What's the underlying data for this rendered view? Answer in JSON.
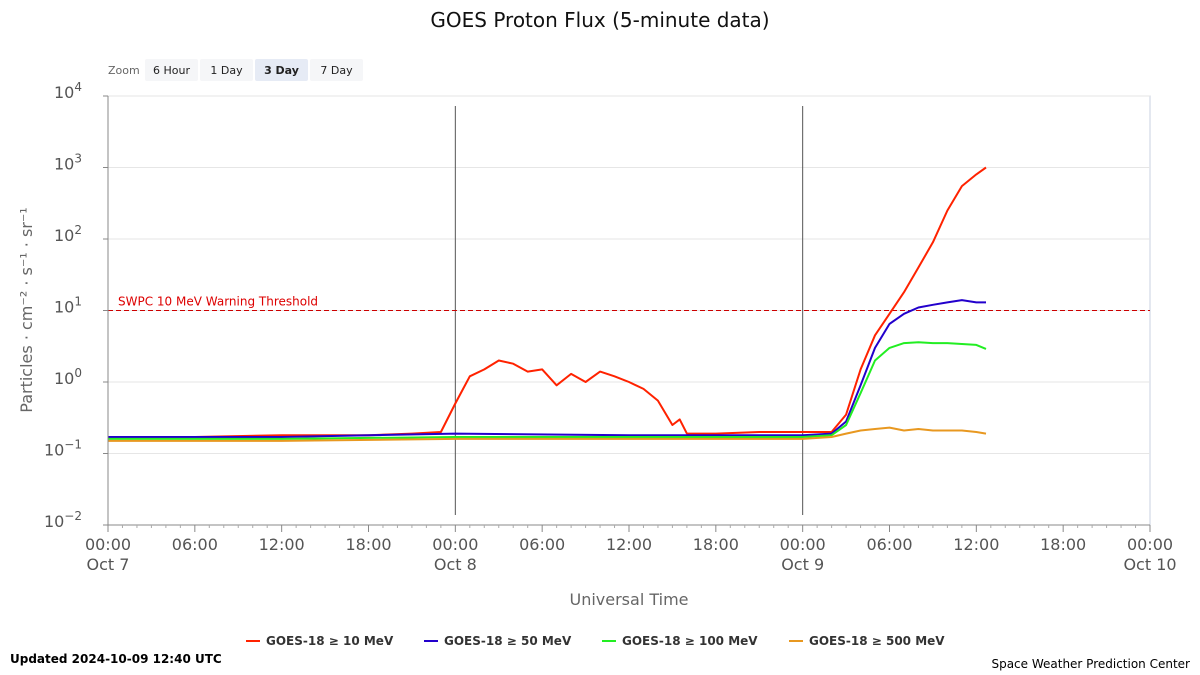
{
  "chart_data": {
    "type": "line",
    "title": "GOES Proton Flux (5-minute data)",
    "xlabel": "Universal Time",
    "ylabel": "Particles · cm⁻² · s⁻¹ · sr⁻¹",
    "yscale": "log",
    "ylim": [
      0.01,
      10000
    ],
    "y_ticks": [
      {
        "value": 10000,
        "base": "10",
        "exp": "4"
      },
      {
        "value": 1000,
        "base": "10",
        "exp": "3"
      },
      {
        "value": 100,
        "base": "10",
        "exp": "2"
      },
      {
        "value": 10,
        "base": "10",
        "exp": "1"
      },
      {
        "value": 1,
        "base": "10",
        "exp": "0"
      },
      {
        "value": 0.1,
        "base": "10",
        "exp": "−1"
      },
      {
        "value": 0.01,
        "base": "10",
        "exp": "−2"
      }
    ],
    "xlim": [
      "2024-10-07 00:00",
      "2024-10-10 00:00"
    ],
    "x_ticks": [
      {
        "time": "2024-10-07 00:00",
        "line1": "00:00",
        "line2": "Oct 7"
      },
      {
        "time": "2024-10-07 06:00",
        "line1": "06:00",
        "line2": ""
      },
      {
        "time": "2024-10-07 12:00",
        "line1": "12:00",
        "line2": ""
      },
      {
        "time": "2024-10-07 18:00",
        "line1": "18:00",
        "line2": ""
      },
      {
        "time": "2024-10-08 00:00",
        "line1": "00:00",
        "line2": "Oct 8"
      },
      {
        "time": "2024-10-08 06:00",
        "line1": "06:00",
        "line2": ""
      },
      {
        "time": "2024-10-08 12:00",
        "line1": "12:00",
        "line2": ""
      },
      {
        "time": "2024-10-08 18:00",
        "line1": "18:00",
        "line2": ""
      },
      {
        "time": "2024-10-09 00:00",
        "line1": "00:00",
        "line2": "Oct 9"
      },
      {
        "time": "2024-10-09 06:00",
        "line1": "06:00",
        "line2": ""
      },
      {
        "time": "2024-10-09 12:00",
        "line1": "12:00",
        "line2": ""
      },
      {
        "time": "2024-10-09 18:00",
        "line1": "18:00",
        "line2": ""
      },
      {
        "time": "2024-10-10 00:00",
        "line1": "00:00",
        "line2": "Oct 10"
      }
    ],
    "day_boundaries": [
      "2024-10-08 00:00",
      "2024-10-09 00:00"
    ],
    "threshold": {
      "value": 10,
      "label": "SWPC 10 MeV Warning Threshold",
      "color": "#cc0000"
    },
    "grid": true,
    "legend_position": "bottom",
    "series": [
      {
        "name": "GOES-18 ≥ 10 MeV",
        "color": "#ff2200",
        "x": [
          "2024-10-07 00:00",
          "2024-10-07 06:00",
          "2024-10-07 12:00",
          "2024-10-07 18:00",
          "2024-10-07 21:00",
          "2024-10-07 23:00",
          "2024-10-08 00:00",
          "2024-10-08 01:00",
          "2024-10-08 02:00",
          "2024-10-08 03:00",
          "2024-10-08 04:00",
          "2024-10-08 05:00",
          "2024-10-08 06:00",
          "2024-10-08 07:00",
          "2024-10-08 08:00",
          "2024-10-08 09:00",
          "2024-10-08 10:00",
          "2024-10-08 11:00",
          "2024-10-08 12:00",
          "2024-10-08 13:00",
          "2024-10-08 14:00",
          "2024-10-08 15:00",
          "2024-10-08 15:30",
          "2024-10-08 16:00",
          "2024-10-08 18:00",
          "2024-10-08 21:00",
          "2024-10-09 00:00",
          "2024-10-09 02:00",
          "2024-10-09 03:00",
          "2024-10-09 04:00",
          "2024-10-09 05:00",
          "2024-10-09 06:00",
          "2024-10-09 07:00",
          "2024-10-09 08:00",
          "2024-10-09 09:00",
          "2024-10-09 10:00",
          "2024-10-09 11:00",
          "2024-10-09 12:00",
          "2024-10-09 12:40"
        ],
        "y": [
          0.17,
          0.17,
          0.18,
          0.18,
          0.19,
          0.2,
          0.5,
          1.2,
          1.5,
          2.0,
          1.8,
          1.4,
          1.5,
          0.9,
          1.3,
          1.0,
          1.4,
          1.2,
          1.0,
          0.8,
          0.55,
          0.25,
          0.3,
          0.19,
          0.19,
          0.2,
          0.2,
          0.2,
          0.35,
          1.5,
          4.5,
          9.0,
          18,
          40,
          90,
          250,
          550,
          800,
          1000
        ]
      },
      {
        "name": "GOES-18 ≥ 50 MeV",
        "color": "#2200cc",
        "x": [
          "2024-10-07 00:00",
          "2024-10-07 12:00",
          "2024-10-08 00:00",
          "2024-10-08 12:00",
          "2024-10-09 00:00",
          "2024-10-09 02:00",
          "2024-10-09 03:00",
          "2024-10-09 04:00",
          "2024-10-09 05:00",
          "2024-10-09 06:00",
          "2024-10-09 07:00",
          "2024-10-09 08:00",
          "2024-10-09 09:00",
          "2024-10-09 10:00",
          "2024-10-09 11:00",
          "2024-10-09 12:00",
          "2024-10-09 12:40"
        ],
        "y": [
          0.17,
          0.17,
          0.19,
          0.18,
          0.18,
          0.19,
          0.28,
          0.9,
          3.0,
          6.5,
          9.0,
          11,
          12,
          13,
          14,
          13,
          13
        ]
      },
      {
        "name": "GOES-18 ≥ 100 MeV",
        "color": "#22ee22",
        "x": [
          "2024-10-07 00:00",
          "2024-10-07 12:00",
          "2024-10-08 00:00",
          "2024-10-08 12:00",
          "2024-10-09 00:00",
          "2024-10-09 02:00",
          "2024-10-09 03:00",
          "2024-10-09 04:00",
          "2024-10-09 05:00",
          "2024-10-09 06:00",
          "2024-10-09 07:00",
          "2024-10-09 08:00",
          "2024-10-09 09:00",
          "2024-10-09 10:00",
          "2024-10-09 11:00",
          "2024-10-09 12:00",
          "2024-10-09 12:40"
        ],
        "y": [
          0.16,
          0.16,
          0.17,
          0.17,
          0.17,
          0.18,
          0.25,
          0.7,
          2.0,
          3.0,
          3.5,
          3.6,
          3.5,
          3.5,
          3.4,
          3.3,
          2.9
        ]
      },
      {
        "name": "GOES-18 ≥ 500 MeV",
        "color": "#e89820",
        "x": [
          "2024-10-07 00:00",
          "2024-10-07 12:00",
          "2024-10-08 00:00",
          "2024-10-08 12:00",
          "2024-10-09 00:00",
          "2024-10-09 02:00",
          "2024-10-09 03:00",
          "2024-10-09 04:00",
          "2024-10-09 05:00",
          "2024-10-09 06:00",
          "2024-10-09 07:00",
          "2024-10-09 08:00",
          "2024-10-09 09:00",
          "2024-10-09 10:00",
          "2024-10-09 11:00",
          "2024-10-09 12:00",
          "2024-10-09 12:40"
        ],
        "y": [
          0.15,
          0.15,
          0.16,
          0.16,
          0.16,
          0.17,
          0.19,
          0.21,
          0.22,
          0.23,
          0.21,
          0.22,
          0.21,
          0.21,
          0.21,
          0.2,
          0.19
        ]
      }
    ]
  },
  "zoom": {
    "label": "Zoom",
    "buttons": [
      {
        "label": "6 Hour",
        "selected": false
      },
      {
        "label": "1 Day",
        "selected": false
      },
      {
        "label": "3 Day",
        "selected": true
      },
      {
        "label": "7 Day",
        "selected": false
      }
    ]
  },
  "footer": {
    "updated": "Updated 2024-10-09 12:40 UTC",
    "credit": "Space Weather Prediction Center"
  }
}
